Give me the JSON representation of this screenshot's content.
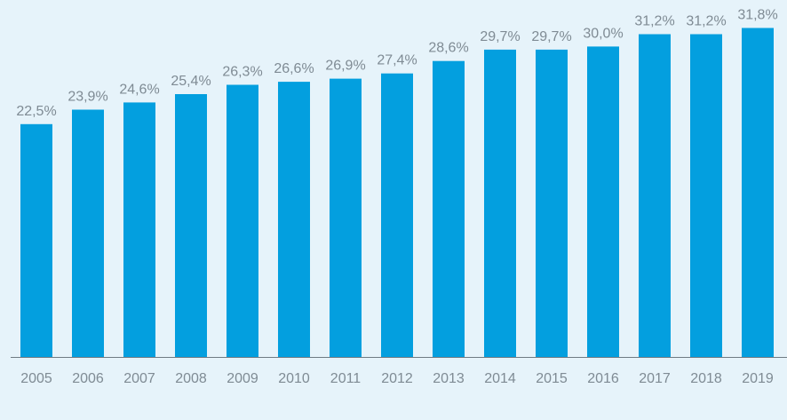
{
  "chart_data": {
    "type": "bar",
    "categories": [
      "2005",
      "2006",
      "2007",
      "2008",
      "2009",
      "2010",
      "2011",
      "2012",
      "2013",
      "2014",
      "2015",
      "2016",
      "2017",
      "2018",
      "2019"
    ],
    "values": [
      22.5,
      23.9,
      24.6,
      25.4,
      26.3,
      26.6,
      26.9,
      27.4,
      28.6,
      29.7,
      29.7,
      30.0,
      31.2,
      31.2,
      31.8
    ],
    "data_labels": [
      "22,5%",
      "23,9%",
      "24,6%",
      "25,4%",
      "26,3%",
      "26,6%",
      "26,9%",
      "27,4%",
      "28,6%",
      "29,7%",
      "29,7%",
      "30,0%",
      "31,2%",
      "31,2%",
      "31,8%"
    ],
    "ylim": [
      0,
      34.5
    ],
    "grid": false,
    "legend": "none",
    "colors": {
      "bar": "#039fdf",
      "label": "#7f8b94",
      "axis": "#6f7a82",
      "background": "#e6f3fa"
    }
  }
}
